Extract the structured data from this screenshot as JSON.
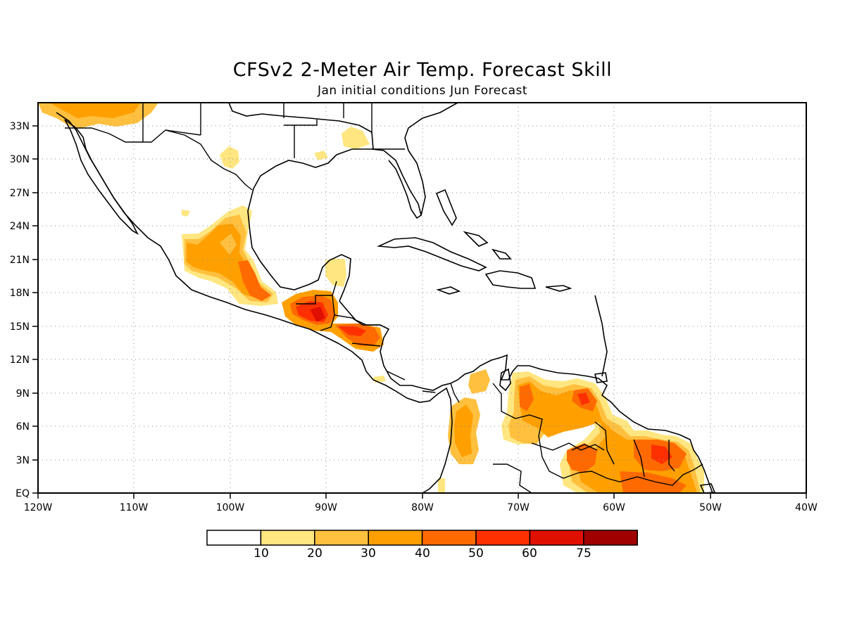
{
  "title": "CFSv2 2-Meter Air Temp. Forecast Skill",
  "subtitle": "Jan initial conditions  Jun Forecast",
  "lon_ticks": [
    "120W",
    "110W",
    "100W",
    "90W",
    "80W",
    "70W",
    "60W",
    "50W",
    "40W"
  ],
  "lat_ticks": [
    "33N",
    "30N",
    "27N",
    "24N",
    "21N",
    "18N",
    "15N",
    "12N",
    "9N",
    "6N",
    "3N",
    "EQ"
  ],
  "colorbar": {
    "labels": [
      "10",
      "20",
      "30",
      "40",
      "50",
      "60",
      "75"
    ],
    "colors": [
      "#ffffff",
      "#ffe680",
      "#ffc040",
      "#ffa000",
      "#ff6a00",
      "#ff3000",
      "#e01000",
      "#a00000"
    ]
  }
}
